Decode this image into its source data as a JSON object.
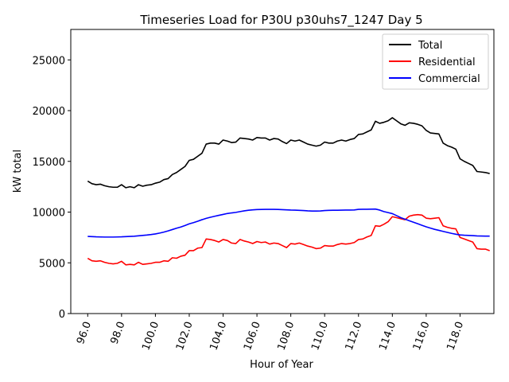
{
  "chart_data": {
    "type": "line",
    "title": "Timeseries Load for P30U p30uhs7_1247  Day 5",
    "xlabel": "Hour of Year",
    "ylabel": "kW total",
    "xlim": [
      95.0,
      120.0
    ],
    "ylim": [
      0,
      28000
    ],
    "x_ticks": [
      96.0,
      98.0,
      100.0,
      102.0,
      104.0,
      106.0,
      108.0,
      110.0,
      112.0,
      114.0,
      116.0,
      118.0
    ],
    "x_tick_labels": [
      "96.0",
      "98.0",
      "100.0",
      "102.0",
      "104.0",
      "106.0",
      "108.0",
      "110.0",
      "112.0",
      "114.0",
      "116.0",
      "118.0"
    ],
    "y_ticks": [
      0,
      5000,
      10000,
      15000,
      20000,
      25000
    ],
    "y_tick_labels": [
      "0",
      "5000",
      "10000",
      "15000",
      "20000",
      "25000"
    ],
    "legend_position": "top-right",
    "x": [
      96.0,
      96.25,
      96.5,
      96.75,
      97.0,
      97.25,
      97.5,
      97.75,
      98.0,
      98.25,
      98.5,
      98.75,
      99.0,
      99.25,
      99.5,
      99.75,
      100.0,
      100.25,
      100.5,
      100.75,
      101.0,
      101.25,
      101.5,
      101.75,
      102.0,
      102.25,
      102.5,
      102.75,
      103.0,
      103.25,
      103.5,
      103.75,
      104.0,
      104.25,
      104.5,
      104.75,
      105.0,
      105.25,
      105.5,
      105.75,
      106.0,
      106.25,
      106.5,
      106.75,
      107.0,
      107.25,
      107.5,
      107.75,
      108.0,
      108.25,
      108.5,
      108.75,
      109.0,
      109.25,
      109.5,
      109.75,
      110.0,
      110.25,
      110.5,
      110.75,
      111.0,
      111.25,
      111.5,
      111.75,
      112.0,
      112.25,
      112.5,
      112.75,
      113.0,
      113.25,
      113.5,
      113.75,
      114.0,
      114.25,
      114.5,
      114.75,
      115.0,
      115.25,
      115.5,
      115.75,
      116.0,
      116.25,
      116.5,
      116.75,
      117.0,
      117.25,
      117.5,
      117.75,
      118.0,
      118.25,
      118.5,
      118.75,
      119.0,
      119.25,
      119.5,
      119.75
    ],
    "series": [
      {
        "name": "Total",
        "color": "#000000",
        "values": [
          13050,
          12800,
          12700,
          12750,
          12600,
          12500,
          12450,
          12450,
          12700,
          12400,
          12500,
          12400,
          12700,
          12550,
          12650,
          12700,
          12850,
          12950,
          13200,
          13300,
          13700,
          13900,
          14200,
          14500,
          15100,
          15200,
          15500,
          15800,
          16700,
          16800,
          16800,
          16700,
          17100,
          17000,
          16850,
          16900,
          17300,
          17250,
          17200,
          17100,
          17350,
          17300,
          17300,
          17100,
          17250,
          17200,
          16950,
          16750,
          17100,
          17000,
          17100,
          16900,
          16700,
          16600,
          16500,
          16600,
          16900,
          16800,
          16800,
          17000,
          17100,
          17000,
          17150,
          17250,
          17650,
          17700,
          17900,
          18100,
          18950,
          18750,
          18850,
          19000,
          19300,
          19000,
          18700,
          18550,
          18800,
          18750,
          18650,
          18500,
          18050,
          17800,
          17750,
          17700,
          16800,
          16550,
          16400,
          16200,
          15250,
          15000,
          14800,
          14600,
          14000,
          13950,
          13900,
          13800
        ]
      },
      {
        "name": "Residential",
        "color": "#ff0000",
        "values": [
          5450,
          5200,
          5150,
          5200,
          5050,
          4950,
          4900,
          4950,
          5150,
          4800,
          4850,
          4800,
          5050,
          4850,
          4900,
          4950,
          5050,
          5050,
          5200,
          5150,
          5500,
          5450,
          5650,
          5750,
          6200,
          6200,
          6450,
          6500,
          7350,
          7300,
          7200,
          7050,
          7300,
          7200,
          6950,
          6900,
          7300,
          7150,
          7050,
          6900,
          7100,
          7000,
          7050,
          6850,
          6950,
          6900,
          6700,
          6500,
          6900,
          6850,
          6950,
          6800,
          6650,
          6550,
          6400,
          6450,
          6700,
          6650,
          6650,
          6800,
          6900,
          6850,
          6900,
          7000,
          7300,
          7350,
          7550,
          7700,
          8650,
          8600,
          8800,
          9050,
          9550,
          9450,
          9350,
          9250,
          9600,
          9700,
          9750,
          9700,
          9400,
          9350,
          9400,
          9450,
          8650,
          8500,
          8400,
          8350,
          7500,
          7350,
          7200,
          7050,
          6400,
          6350,
          6350,
          6200
        ]
      },
      {
        "name": "Commercial",
        "color": "#0000ff",
        "values": [
          7600,
          7580,
          7560,
          7550,
          7540,
          7540,
          7540,
          7550,
          7560,
          7580,
          7600,
          7620,
          7660,
          7700,
          7740,
          7790,
          7850,
          7930,
          8030,
          8150,
          8280,
          8410,
          8530,
          8680,
          8840,
          8960,
          9100,
          9250,
          9380,
          9490,
          9590,
          9680,
          9770,
          9860,
          9920,
          9970,
          10050,
          10120,
          10180,
          10220,
          10250,
          10260,
          10270,
          10270,
          10270,
          10260,
          10240,
          10220,
          10200,
          10190,
          10170,
          10150,
          10120,
          10100,
          10100,
          10110,
          10150,
          10170,
          10180,
          10180,
          10190,
          10200,
          10200,
          10210,
          10270,
          10280,
          10280,
          10290,
          10300,
          10200,
          10050,
          9950,
          9850,
          9650,
          9450,
          9300,
          9150,
          9000,
          8850,
          8700,
          8550,
          8420,
          8300,
          8200,
          8100,
          8000,
          7900,
          7820,
          7750,
          7720,
          7700,
          7680,
          7650,
          7640,
          7630,
          7630
        ]
      }
    ]
  }
}
